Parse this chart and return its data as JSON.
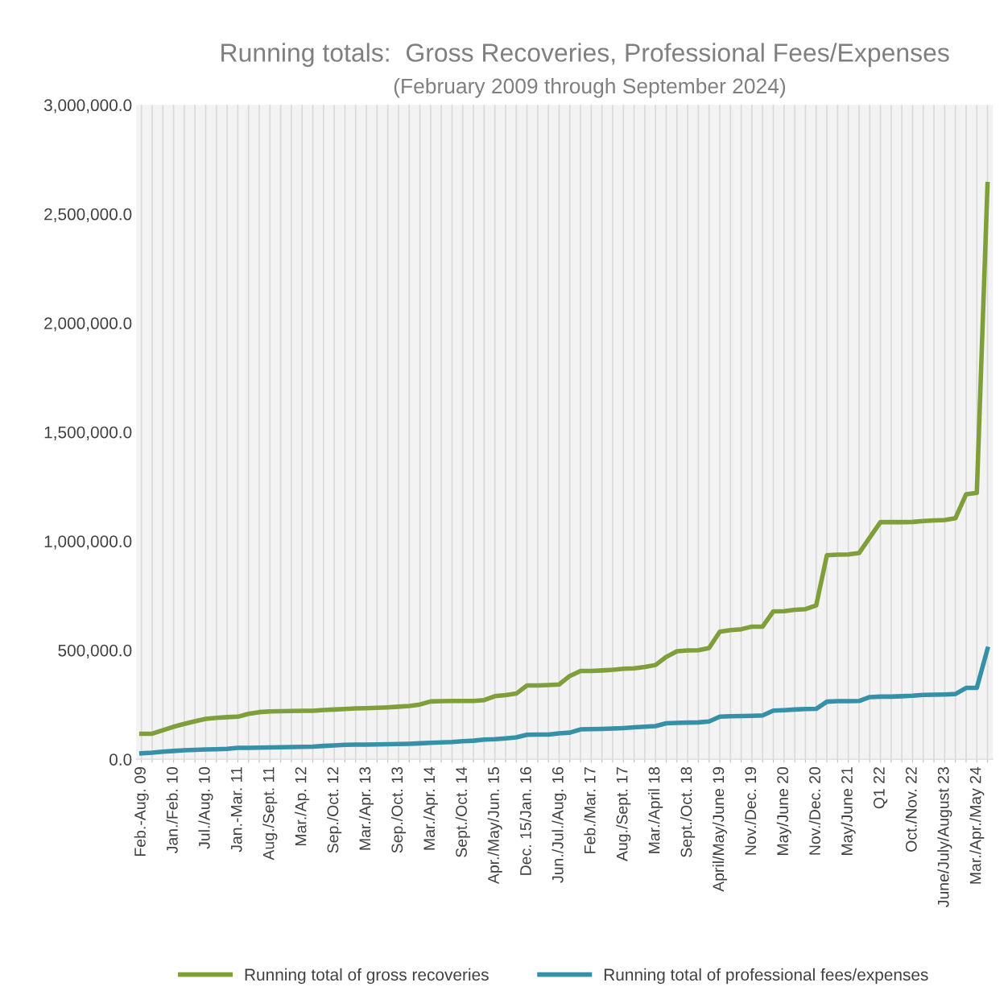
{
  "chart_data": {
    "type": "line",
    "title": "Running totals:  Gross Recoveries, Professional Fees/Expenses",
    "subtitle": "(February 2009 through September 2024)",
    "categories": [
      "Feb.-Aug. 09",
      null,
      null,
      "Jan./Feb. 10",
      null,
      null,
      "Jul./Aug. 10",
      null,
      null,
      "Jan.-Mar. 11",
      null,
      null,
      "Aug./Sept. 11",
      null,
      null,
      "Mar./Ap. 12",
      null,
      null,
      "Sep./Oct. 12",
      null,
      null,
      "Mar./Apr. 13",
      null,
      null,
      "Sep./Oct. 13",
      null,
      null,
      "Mar./Apr. 14",
      null,
      null,
      "Sept./Oct. 14",
      null,
      null,
      "Apr./May/Jun. 15",
      null,
      null,
      "Dec. 15/Jan. 16",
      null,
      null,
      "Jun./Jul./Aug. 16",
      null,
      null,
      "Feb./Mar. 17",
      null,
      null,
      "Aug./Sept. 17",
      null,
      null,
      "Mar./April 18",
      null,
      null,
      "Sept./Oct. 18",
      null,
      null,
      "April/May/June 19",
      null,
      null,
      "Nov./Dec. 19",
      null,
      null,
      "May/June 20",
      null,
      null,
      "Nov./Dec. 20",
      null,
      null,
      "May/June 21",
      null,
      null,
      "Q1 22",
      null,
      null,
      "Oct./Nov. 22",
      null,
      null,
      "June/July/August 23",
      null,
      null,
      "Mar./Apr./May 24",
      null
    ],
    "series": [
      {
        "name": "Running total of gross recoveries",
        "color": "#7f9f3a",
        "values": [
          117000,
          117000,
          133000,
          149000,
          162000,
          174000,
          185000,
          190000,
          193000,
          195000,
          208000,
          216000,
          219000,
          220000,
          221000,
          222000,
          222000,
          226000,
          228000,
          230000,
          233000,
          234000,
          236000,
          238000,
          241000,
          244000,
          251000,
          265000,
          266000,
          267000,
          267000,
          267000,
          271000,
          289000,
          294000,
          301000,
          338000,
          338000,
          340000,
          343000,
          382000,
          405000,
          405000,
          407000,
          410000,
          415000,
          417000,
          423000,
          432000,
          469000,
          495000,
          499000,
          500000,
          510000,
          585000,
          592000,
          596000,
          608000,
          608000,
          678000,
          679000,
          685000,
          688000,
          705000,
          935000,
          938000,
          939000,
          945000,
          1016000,
          1087000,
          1087000,
          1087000,
          1088000,
          1092000,
          1095000,
          1097000,
          1105000,
          1215000,
          1221000,
          2637000
        ]
      },
      {
        "name": "Running total of professional fees/expenses",
        "color": "#3590a8",
        "values": [
          27000,
          30000,
          35000,
          38000,
          41000,
          43000,
          45000,
          46000,
          48000,
          52000,
          52000,
          53000,
          54000,
          55000,
          56000,
          57000,
          58000,
          61000,
          63000,
          66000,
          67000,
          67000,
          68000,
          69000,
          70000,
          71000,
          73000,
          75000,
          77000,
          79000,
          83000,
          85000,
          90000,
          92000,
          96000,
          100000,
          112000,
          113000,
          113000,
          119000,
          122000,
          137000,
          138000,
          139000,
          141000,
          143000,
          146000,
          149000,
          152000,
          165000,
          167000,
          168000,
          169000,
          173000,
          195000,
          197000,
          198000,
          199000,
          201000,
          223000,
          225000,
          228000,
          230000,
          231000,
          264000,
          266000,
          266000,
          267000,
          285000,
          287000,
          287000,
          289000,
          291000,
          295000,
          296000,
          297000,
          299000,
          327000,
          327000,
          506000
        ]
      }
    ],
    "ylim": [
      0,
      3000000
    ],
    "yticks": [
      {
        "value": 0,
        "label": "0.0"
      },
      {
        "value": 500000,
        "label": "500,000.0"
      },
      {
        "value": 1000000,
        "label": "1,000,000.0"
      },
      {
        "value": 1500000,
        "label": "1,500,000.0"
      },
      {
        "value": 2000000,
        "label": "2,000,000.0"
      },
      {
        "value": 2500000,
        "label": "2,500,000.0"
      },
      {
        "value": 3000000,
        "label": "3,000,000.0"
      }
    ],
    "grid": "x",
    "legend": "bottom",
    "marker": "none",
    "line_style": "solid"
  }
}
